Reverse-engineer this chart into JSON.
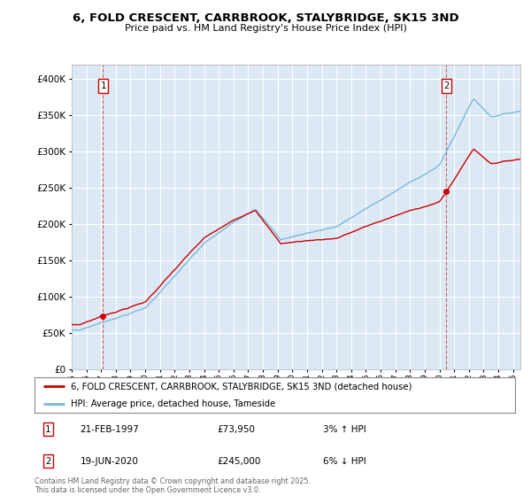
{
  "title": "6, FOLD CRESCENT, CARRBROOK, STALYBRIDGE, SK15 3ND",
  "subtitle": "Price paid vs. HM Land Registry's House Price Index (HPI)",
  "legend_line1": "6, FOLD CRESCENT, CARRBROOK, STALYBRIDGE, SK15 3ND (detached house)",
  "legend_line2": "HPI: Average price, detached house, Tameside",
  "annotation1_date": "21-FEB-1997",
  "annotation1_price": "£73,950",
  "annotation1_hpi": "3% ↑ HPI",
  "annotation2_date": "19-JUN-2020",
  "annotation2_price": "£245,000",
  "annotation2_hpi": "6% ↓ HPI",
  "footnote": "Contains HM Land Registry data © Crown copyright and database right 2025.\nThis data is licensed under the Open Government Licence v3.0.",
  "hpi_color": "#7ab8d9",
  "price_color": "#cc0000",
  "marker_color": "#cc0000",
  "vline_color": "#cc0000",
  "bg_color": "#dce9f5",
  "grid_color": "#ffffff",
  "ylim": [
    0,
    420000
  ],
  "yticks": [
    0,
    50000,
    100000,
    150000,
    200000,
    250000,
    300000,
    350000,
    400000
  ],
  "xlim_start": 1995.0,
  "xlim_end": 2025.5,
  "sale1_x": 1997.13,
  "sale1_y": 73950,
  "sale2_x": 2020.47,
  "sale2_y": 245000
}
